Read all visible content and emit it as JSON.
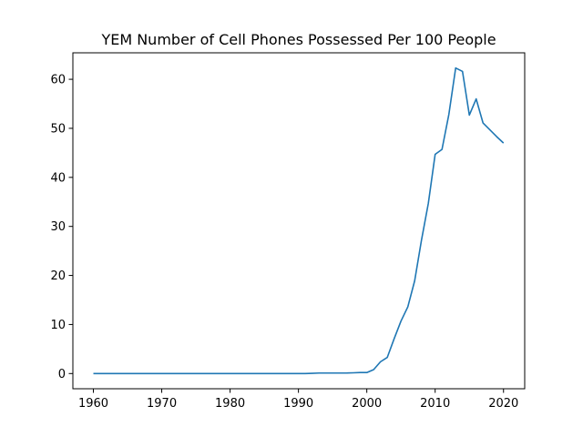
{
  "chart_data": {
    "type": "line",
    "title": "YEM Number of Cell Phones Possessed Per 100 People",
    "xlabel": "",
    "ylabel": "",
    "xlim": [
      1957,
      2023.1
    ],
    "ylim": [
      -3.1,
      65.4
    ],
    "xticks": [
      1960,
      1970,
      1980,
      1990,
      2000,
      2010,
      2020
    ],
    "yticks": [
      0,
      10,
      20,
      30,
      40,
      50,
      60
    ],
    "grid": false,
    "series": [
      {
        "color": "#1f77b4",
        "x": [
          1960,
          1961,
          1962,
          1963,
          1964,
          1965,
          1966,
          1967,
          1968,
          1969,
          1970,
          1971,
          1972,
          1973,
          1974,
          1975,
          1976,
          1977,
          1978,
          1979,
          1980,
          1981,
          1982,
          1983,
          1984,
          1985,
          1986,
          1987,
          1988,
          1989,
          1990,
          1991,
          1992,
          1993,
          1994,
          1995,
          1996,
          1997,
          1998,
          1999,
          2000,
          2001,
          2002,
          2003,
          2004,
          2005,
          2006,
          2007,
          2008,
          2009,
          2010,
          2011,
          2012,
          2013,
          2014,
          2015,
          2016,
          2017,
          2018,
          2019,
          2020
        ],
        "y": [
          0,
          0,
          0,
          0,
          0,
          0,
          0,
          0,
          0,
          0,
          0,
          0,
          0,
          0,
          0,
          0,
          0,
          0,
          0,
          0,
          0,
          0,
          0,
          0,
          0,
          0,
          0,
          0,
          0,
          0,
          0,
          0,
          0.05,
          0.1,
          0.1,
          0.1,
          0.1,
          0.1,
          0.15,
          0.2,
          0.2,
          0.8,
          2.4,
          3.3,
          7.1,
          10.7,
          13.6,
          18.9,
          27.2,
          34.7,
          44.7,
          45.7,
          52.8,
          62.3,
          61.6,
          52.7,
          56.0,
          51.1,
          49.7,
          48.3,
          47.0
        ]
      }
    ]
  }
}
